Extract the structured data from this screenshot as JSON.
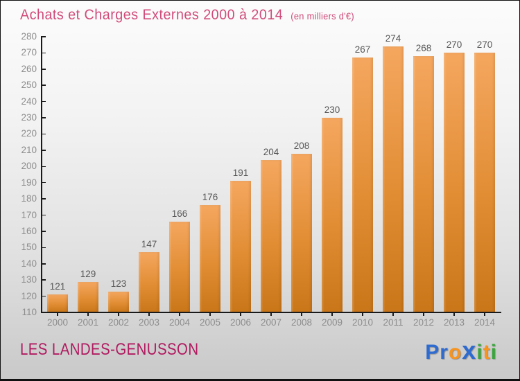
{
  "header": {
    "title": "Achats et Charges Externes 2000 à 2014",
    "subtitle": "(en milliers d'€)"
  },
  "footer": {
    "location": "LES LANDES-GENUSSON",
    "logo": {
      "name": "Proxiti",
      "letters": [
        {
          "ch": "P",
          "color": "#2e6bd0",
          "big": false
        },
        {
          "ch": "r",
          "color": "#2e6bd0",
          "big": false
        },
        {
          "ch": "o",
          "color": "#f7941e",
          "big": false
        },
        {
          "ch": "x",
          "color": "#2e6bd0",
          "big": true
        },
        {
          "ch": "i",
          "color": "#3aa53c",
          "big": false
        },
        {
          "ch": "t",
          "color": "#f7941e",
          "big": false
        },
        {
          "ch": "i",
          "color": "#3aa53c",
          "big": false
        }
      ]
    }
  },
  "colors": {
    "title": "#d04b7a",
    "location": "#b01b60",
    "bar_top": "#f5a75f",
    "bar_bottom": "#c97619",
    "axis": "#1a1a1a",
    "tick_label": "#8d8d8d",
    "value_label": "#565656",
    "background_top": "#fcfcfc",
    "background_bottom": "#c9c9c9"
  },
  "chart_data": {
    "type": "bar",
    "title": "Achats et Charges Externes 2000 à 2014",
    "subtitle": "(en milliers d'€)",
    "categories": [
      "2000",
      "2001",
      "2002",
      "2003",
      "2004",
      "2005",
      "2006",
      "2007",
      "2008",
      "2009",
      "2010",
      "2011",
      "2012",
      "2013",
      "2014"
    ],
    "values": [
      121,
      129,
      123,
      147,
      166,
      176,
      191,
      204,
      208,
      230,
      267,
      274,
      268,
      270,
      270
    ],
    "ylim": [
      110,
      280
    ],
    "yticks": [
      110,
      120,
      130,
      140,
      150,
      160,
      170,
      180,
      190,
      200,
      210,
      220,
      230,
      240,
      250,
      260,
      270,
      280
    ],
    "xlabel": "",
    "ylabel": "",
    "grid": false,
    "legend": false,
    "bar_value_labels_shown": true
  }
}
